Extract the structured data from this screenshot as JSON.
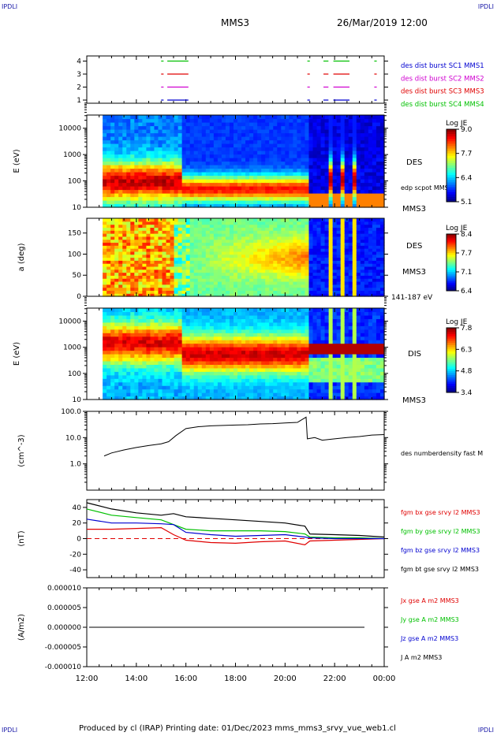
{
  "corners": {
    "tl": "IPDLI",
    "tr": "IPDLI",
    "bl": "IPDLI",
    "br": "IPDLI"
  },
  "header": {
    "spacecraft": "MMS3",
    "date": "26/Mar/2019 12:00"
  },
  "footer": "Produced by cl (IRAP)   Printing date: 01/Dec/2023   mms_mms3_srvy_vue_web1.cl",
  "colors": {
    "red": "#e00000",
    "green": "#00c000",
    "blue": "#0000d0",
    "magenta": "#d000d0",
    "black": "#000000"
  },
  "chart_data": [
    {
      "type": "scatter",
      "title": "Burst availability",
      "x": [
        "12:00",
        "14:00",
        "16:00",
        "18:00",
        "20:00",
        "22:00",
        "00:00"
      ],
      "yticks": [
        "1",
        "2",
        "3",
        "4"
      ],
      "legend": [
        {
          "name": "des dist burst SC1 MMS1",
          "color": "#0000d0"
        },
        {
          "name": "des dist burst SC2 MMS2",
          "color": "#d000d0"
        },
        {
          "name": "des dist burst SC3 MMS3",
          "color": "#e00000"
        },
        {
          "name": "des dist burst SC4 MMS4",
          "color": "#00c000"
        }
      ],
      "intervals": [
        [
          15.0,
          15.1
        ],
        [
          15.25,
          16.1
        ],
        [
          20.9,
          21.0
        ],
        [
          21.55,
          21.75
        ],
        [
          21.95,
          22.6
        ],
        [
          23.6,
          23.7
        ]
      ]
    },
    {
      "type": "heatmap",
      "ylabel": "E (eV)",
      "yticks": [
        "10",
        "100",
        "1000",
        "10000"
      ],
      "label": "DES",
      "overlay": "edp scpot MMS3",
      "sc": "MMS3",
      "colorbar": {
        "title": "Log JE",
        "ticks": [
          "9.0",
          "7.7",
          "6.4",
          "5.1"
        ]
      }
    },
    {
      "type": "heatmap",
      "ylabel": "a (deg)",
      "yticks": [
        "0",
        "50",
        "100",
        "150"
      ],
      "label": "DES",
      "sc": "MMS3",
      "energy": "141-187 eV",
      "colorbar": {
        "title": "Log JE",
        "ticks": [
          "8.4",
          "7.7",
          "7.1",
          "6.4"
        ]
      }
    },
    {
      "type": "heatmap",
      "ylabel": "E (eV)",
      "yticks": [
        "10",
        "100",
        "1000",
        "10000"
      ],
      "label": "DIS",
      "sc": "MMS3",
      "colorbar": {
        "title": "Log JE",
        "ticks": [
          "7.8",
          "6.3",
          "4.8",
          "3.4"
        ]
      }
    },
    {
      "type": "line",
      "ylabel": "(cm^-3)",
      "yticks": [
        "1.0",
        "10.0",
        "100.0"
      ],
      "ylim": [
        0.1,
        100
      ],
      "series": [
        {
          "name": "des numberdensity fast M",
          "color": "#000000"
        }
      ],
      "x": [
        12.7,
        13.0,
        13.5,
        14.0,
        14.5,
        15.0,
        15.3,
        15.6,
        16.0,
        16.5,
        17.0,
        17.5,
        18.0,
        18.5,
        19.0,
        19.5,
        20.0,
        20.5,
        20.85,
        20.9,
        21.2,
        21.5,
        22.0,
        22.5,
        23.0,
        23.5,
        24.0
      ],
      "y": [
        2.0,
        2.6,
        3.4,
        4.2,
        5.0,
        5.8,
        7.0,
        12.0,
        22.0,
        26.0,
        28.0,
        29.0,
        30.0,
        31.0,
        33.0,
        34.0,
        36.0,
        38.0,
        60.0,
        9.0,
        10.0,
        8.0,
        9.0,
        10.0,
        11.0,
        12.5,
        13.0
      ]
    },
    {
      "type": "line",
      "ylabel": "(nT)",
      "yticks": [
        "-40",
        "-20",
        "0",
        "20",
        "40"
      ],
      "ylim": [
        -50,
        50
      ],
      "series": [
        {
          "name": "fgm bx gse srvy l2 MMS3",
          "color": "#e00000",
          "x": [
            12,
            13,
            14,
            15,
            15.5,
            16,
            17,
            18,
            19,
            20,
            20.8,
            21,
            22,
            23,
            24
          ],
          "y": [
            12,
            12,
            13,
            14,
            5,
            -2,
            -5,
            -6,
            -4,
            -3,
            -8,
            -3,
            -2,
            -1,
            0
          ]
        },
        {
          "name": "fgm by gse srvy l2 MMS3",
          "color": "#00c000",
          "x": [
            12,
            13,
            14,
            15,
            15.5,
            16,
            17,
            18,
            19,
            20,
            20.8,
            21,
            22,
            23,
            24
          ],
          "y": [
            38,
            30,
            27,
            24,
            18,
            12,
            10,
            10,
            10,
            9,
            6,
            2,
            1,
            1,
            0
          ]
        },
        {
          "name": "fgm bz gse srvy l2 MMS3",
          "color": "#0000d0",
          "x": [
            12,
            13,
            14,
            15,
            15.5,
            16,
            17,
            18,
            19,
            20,
            20.8,
            21,
            22,
            23,
            24
          ],
          "y": [
            25,
            20,
            20,
            19,
            18,
            8,
            5,
            3,
            4,
            5,
            2,
            1,
            0,
            0,
            0
          ]
        },
        {
          "name": "fgm bt gse srvy l2 MMS3",
          "color": "#000000",
          "x": [
            12,
            13,
            14,
            15,
            15.5,
            16,
            17,
            18,
            19,
            20,
            20.8,
            21,
            22,
            23,
            24
          ],
          "y": [
            46,
            38,
            33,
            30,
            32,
            28,
            26,
            24,
            22,
            20,
            16,
            6,
            5,
            4,
            2
          ]
        }
      ]
    },
    {
      "type": "line",
      "ylabel": "(A/m2)",
      "yticks": [
        "-0.000010",
        "-0.000005",
        "0.000000",
        "0.000005",
        "0.000010"
      ],
      "ylim": [
        -1e-05,
        1e-05
      ],
      "series": [
        {
          "name": "Jx gse A m2 MMS3",
          "color": "#e00000"
        },
        {
          "name": "Jy gse A m2 MMS3",
          "color": "#00c000"
        },
        {
          "name": "Jz gse A m2 MMS3",
          "color": "#0000d0"
        },
        {
          "name": "J A m2 MMS3",
          "color": "#000000"
        }
      ]
    }
  ]
}
